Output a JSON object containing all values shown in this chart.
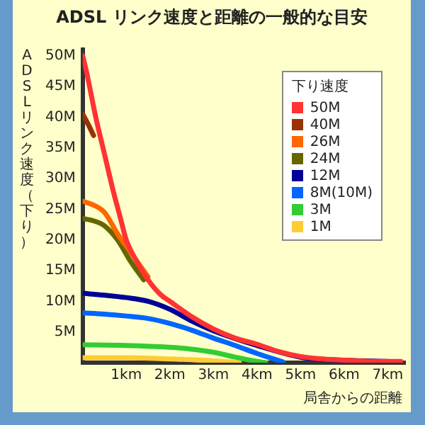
{
  "chart_data": {
    "type": "line",
    "title": "ADSL リンク速度と距離の一般的な目安",
    "xlabel": "局舎からの距離",
    "ylabel": "ADSLリンク速度（下り）",
    "legend_title": "下り速度",
    "legend": "top right",
    "grid": false,
    "marker": "none",
    "line_style": "solid",
    "xlim": [
      0,
      7.4
    ],
    "xticks": [
      {
        "value": 1,
        "label": "1km"
      },
      {
        "value": 2,
        "label": "2km"
      },
      {
        "value": 3,
        "label": "3km"
      },
      {
        "value": 4,
        "label": "4km"
      },
      {
        "value": 5,
        "label": "5km"
      },
      {
        "value": 6,
        "label": "6km"
      },
      {
        "value": 7,
        "label": "7km"
      }
    ],
    "ylim": [
      0,
      51
    ],
    "yticks": [
      {
        "value": 5,
        "label": "5M"
      },
      {
        "value": 10,
        "label": "10M"
      },
      {
        "value": 15,
        "label": "15M"
      },
      {
        "value": 20,
        "label": "20M"
      },
      {
        "value": 25,
        "label": "25M"
      },
      {
        "value": 30,
        "label": "30M"
      },
      {
        "value": 35,
        "label": "35M"
      },
      {
        "value": 40,
        "label": "40M"
      },
      {
        "value": 45,
        "label": "45M"
      },
      {
        "value": 50,
        "label": "50M"
      }
    ],
    "series": [
      {
        "name": "50M",
        "color": "#ff3333",
        "x": [
          0,
          0.1,
          0.3,
          0.5,
          0.7,
          0.85,
          1,
          1.2,
          1.5,
          1.8,
          2,
          2.5,
          3,
          3.5,
          4,
          4.5,
          5,
          5.5,
          6,
          7,
          7.3
        ],
        "values": [
          50,
          47,
          40,
          34,
          28,
          24,
          20,
          17,
          13.5,
          11,
          10,
          7.5,
          5.5,
          4,
          3,
          1.8,
          1,
          0.6,
          0.4,
          0.2,
          0.2
        ]
      },
      {
        "name": "40M",
        "color": "#993300",
        "x": [
          0,
          0.15,
          0.25
        ],
        "values": [
          40.5,
          38.5,
          37
        ]
      },
      {
        "name": "26M",
        "color": "#ff6600",
        "x": [
          0,
          0.3,
          0.5,
          0.8,
          1,
          1.2,
          1.5
        ],
        "values": [
          26.3,
          25.5,
          24.5,
          21,
          19,
          17,
          14
        ]
      },
      {
        "name": "24M",
        "color": "#666600",
        "x": [
          0,
          0.3,
          0.5,
          0.8,
          1.1,
          1.4
        ],
        "values": [
          23.5,
          23,
          22.3,
          20,
          16.5,
          13.5
        ]
      },
      {
        "name": "12M",
        "color": "#000099",
        "x": [
          0,
          0.5,
          1,
          1.5,
          2,
          2.5,
          3,
          4,
          5,
          6,
          7
        ],
        "values": [
          11.3,
          11,
          10.6,
          10,
          8.7,
          6.8,
          5.2,
          2.8,
          0.9,
          0.4,
          0.2
        ]
      },
      {
        "name": "8M(10M)",
        "color": "#0066ff",
        "x": [
          0,
          0.5,
          1,
          1.5,
          2,
          2.5,
          3,
          3.5,
          4,
          4.6
        ],
        "values": [
          8.1,
          7.9,
          7.6,
          7.2,
          6.4,
          5.3,
          4,
          2.8,
          1.5,
          0.1
        ]
      },
      {
        "name": "3M",
        "color": "#33cc33",
        "x": [
          0,
          1,
          2,
          2.5,
          3,
          3.5,
          4,
          4.2
        ],
        "values": [
          2.9,
          2.8,
          2.5,
          2.2,
          1.7,
          0.9,
          0.2,
          0
        ]
      },
      {
        "name": "1M",
        "color": "#ffcc33",
        "x": [
          0,
          1,
          2,
          3,
          3.6
        ],
        "values": [
          0.8,
          0.8,
          0.6,
          0.3,
          0
        ]
      }
    ]
  }
}
